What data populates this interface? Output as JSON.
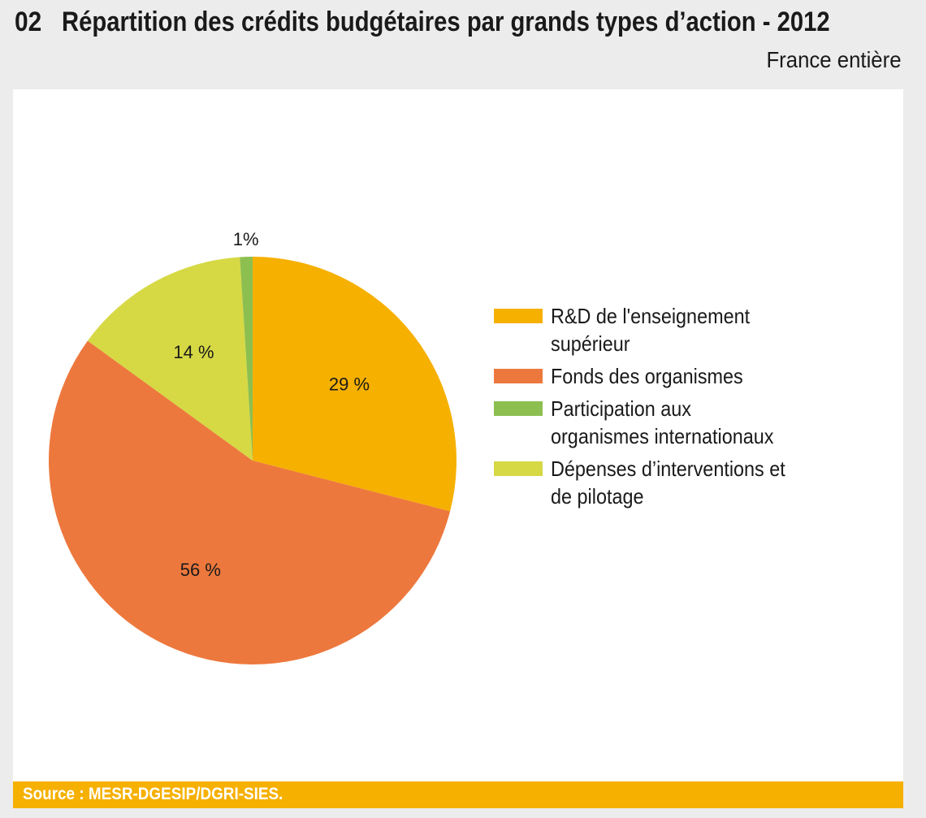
{
  "header": {
    "number": "02",
    "title": "Répartition des crédits budgétaires par grands types d’action - 2012",
    "subtitle": "France entière"
  },
  "chart_data": {
    "type": "pie",
    "title": "Répartition des crédits budgétaires par grands types d’action - 2012",
    "subtitle": "France entière",
    "slices": [
      {
        "legend": "R&D de l'enseignement supérieur",
        "value": 29,
        "label": "29 %",
        "color": "#f6b000"
      },
      {
        "legend": "Fonds des organismes",
        "value": 56,
        "label": "56 %",
        "color": "#ed783d"
      },
      {
        "legend": "Dépenses d’interventions et de pilotage",
        "value": 14,
        "label": "14 %",
        "color": "#d6d944"
      },
      {
        "legend": "Participation aux organismes internationaux",
        "value": 1,
        "label": "1%",
        "color": "#8cbf50"
      }
    ],
    "legend_position": "right"
  },
  "legend": [
    {
      "label": "R&D de l'enseignement supérieur",
      "color": "#f6b000"
    },
    {
      "label": "Fonds des organismes",
      "color": "#ed783d"
    },
    {
      "label": "Participation aux organismes internationaux",
      "color": "#8cbf50"
    },
    {
      "label": "Dépenses d’interventions et de pilotage",
      "color": "#d6d944"
    }
  ],
  "source": "Source : MESR-DGESIP/DGRI-SIES."
}
